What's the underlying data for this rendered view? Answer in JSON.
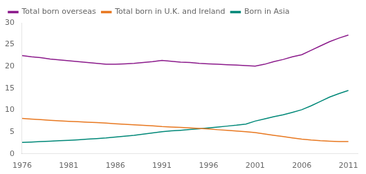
{
  "chart_data": {
    "type": "line",
    "x": [
      1976,
      1977,
      1978,
      1979,
      1980,
      1981,
      1982,
      1983,
      1984,
      1985,
      1986,
      1987,
      1988,
      1989,
      1990,
      1991,
      1992,
      1993,
      1994,
      1995,
      1996,
      1997,
      1998,
      1999,
      2000,
      2001,
      2002,
      2003,
      2004,
      2005,
      2006,
      2007,
      2008,
      2009,
      2010,
      2011
    ],
    "series": [
      {
        "name": "Total born overseas",
        "color": "#8B1A8B",
        "values": [
          22.5,
          22.2,
          22.0,
          21.7,
          21.5,
          21.3,
          21.1,
          20.9,
          20.7,
          20.5,
          20.5,
          20.6,
          20.7,
          20.9,
          21.1,
          21.4,
          21.2,
          21.0,
          20.9,
          20.7,
          20.6,
          20.5,
          20.4,
          20.3,
          20.2,
          20.1,
          20.5,
          21.1,
          21.6,
          22.2,
          22.7,
          23.7,
          24.7,
          25.7,
          26.5,
          27.2
        ]
      },
      {
        "name": "Total born in U.K. and Ireland",
        "color": "#E87820",
        "values": [
          8.1,
          7.95,
          7.82,
          7.68,
          7.55,
          7.45,
          7.35,
          7.25,
          7.15,
          7.05,
          6.9,
          6.78,
          6.65,
          6.52,
          6.4,
          6.25,
          6.15,
          6.05,
          5.95,
          5.8,
          5.68,
          5.52,
          5.38,
          5.22,
          5.05,
          4.85,
          4.55,
          4.25,
          3.95,
          3.65,
          3.35,
          3.15,
          3.0,
          2.9,
          2.82,
          2.8
        ]
      },
      {
        "name": "Born in Asia",
        "color": "#008878",
        "values": [
          2.6,
          2.7,
          2.82,
          2.9,
          3.0,
          3.1,
          3.22,
          3.35,
          3.5,
          3.65,
          3.85,
          4.05,
          4.25,
          4.5,
          4.78,
          5.05,
          5.25,
          5.4,
          5.58,
          5.75,
          5.95,
          6.15,
          6.35,
          6.55,
          6.8,
          7.5,
          8.0,
          8.5,
          8.95,
          9.5,
          10.1,
          11.0,
          12.0,
          13.0,
          13.8,
          14.5
        ]
      }
    ],
    "xlim": [
      1976,
      2012
    ],
    "xticks": [
      1976,
      1981,
      1986,
      1991,
      1996,
      2001,
      2006,
      2011
    ],
    "ylim": [
      0,
      30
    ],
    "yticks": [
      0,
      5,
      10,
      15,
      20,
      25,
      30
    ],
    "grid": false,
    "legend": "upper left"
  }
}
